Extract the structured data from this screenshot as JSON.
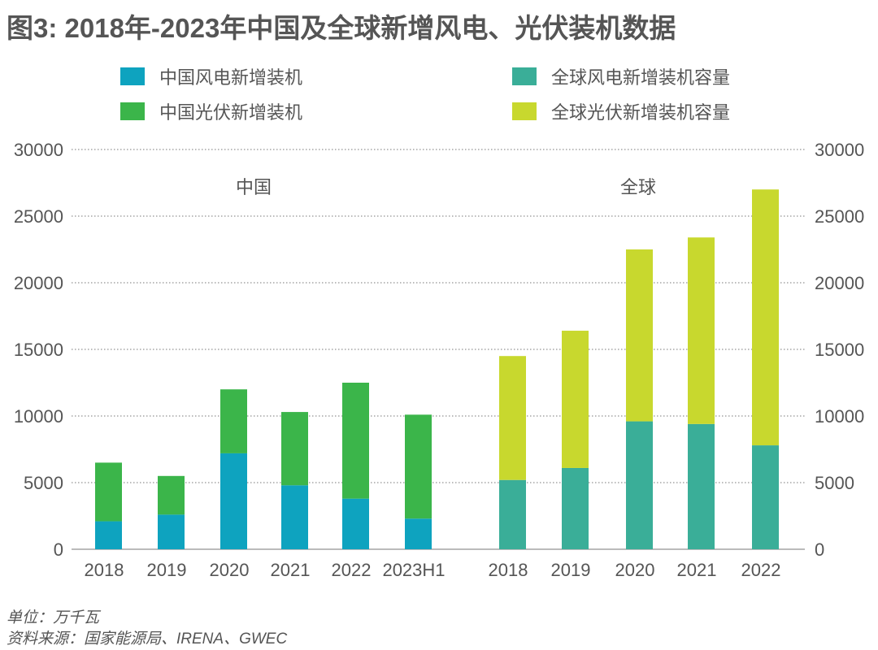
{
  "chart_data": {
    "type": "bar",
    "stacked": true,
    "title": "图3: 2018年-2023年中国及全球新增风电、光伏装机数据",
    "ylim": [
      0,
      30000
    ],
    "yticks": [
      0,
      5000,
      10000,
      15000,
      20000,
      25000,
      30000
    ],
    "grid": true,
    "legend_position": "top",
    "groups": [
      {
        "label": "中国",
        "categories": [
          "2018",
          "2019",
          "2020",
          "2021",
          "2022",
          "2023H1"
        ],
        "series": [
          {
            "name": "中国风电新增装机",
            "color": "#0ea3bf",
            "values": [
              2100,
              2600,
              7200,
              4800,
              3800,
              2300
            ]
          },
          {
            "name": "中国光伏新增装机",
            "color": "#3bb54a",
            "values": [
              4400,
              2900,
              4800,
              5500,
              8700,
              7800
            ]
          }
        ]
      },
      {
        "label": "全球",
        "categories": [
          "2018",
          "2019",
          "2020",
          "2021",
          "2022"
        ],
        "series": [
          {
            "name": "全球风电新增装机容量",
            "color": "#3aae98",
            "values": [
              5200,
              6100,
              9600,
              9400,
              7800
            ]
          },
          {
            "name": "全球光伏新增装机容量",
            "color": "#c8d82e",
            "values": [
              9300,
              10300,
              12900,
              14000,
              19200
            ]
          }
        ]
      }
    ]
  },
  "footer": {
    "unit": "单位：万千瓦",
    "source": "资料来源：国家能源局、IRENA、GWEC"
  }
}
